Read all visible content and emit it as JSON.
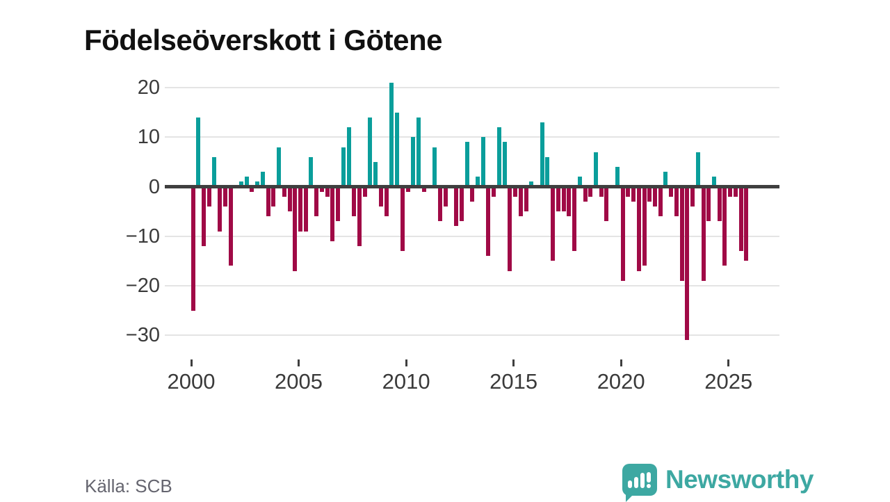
{
  "title": "Födelseöverskott i Götene",
  "source": "Källa: SCB",
  "brand": {
    "name": "Newsworthy",
    "color": "#3da8a2"
  },
  "colors": {
    "positive": "#0a9e9b",
    "negative": "#a00a46",
    "grid": "#e4e4e4",
    "zero_line": "#3f3f3f",
    "axis_text": "#3a3a3a",
    "source_text": "#65656f"
  },
  "chart_data": {
    "type": "bar",
    "title": "Födelseöverskott i Götene",
    "xlabel": "",
    "ylabel": "",
    "frequency": "quarterly",
    "grid": true,
    "legend": false,
    "ylim": [
      -33,
      23
    ],
    "y_ticks": [
      20,
      10,
      0,
      -10,
      -20,
      -30
    ],
    "x_ticks": [
      2000,
      2005,
      2010,
      2015,
      2020,
      2025
    ],
    "series": [
      {
        "year": 2000,
        "q": [
          -25,
          14,
          -12,
          -4
        ]
      },
      {
        "year": 2001,
        "q": [
          6,
          -9,
          -4,
          -16
        ]
      },
      {
        "year": 2002,
        "q": [
          0,
          1,
          2,
          -1
        ]
      },
      {
        "year": 2003,
        "q": [
          1,
          3,
          -6,
          -4
        ]
      },
      {
        "year": 2004,
        "q": [
          8,
          -2,
          -5,
          -17
        ]
      },
      {
        "year": 2005,
        "q": [
          -9,
          -9,
          6,
          -6
        ]
      },
      {
        "year": 2006,
        "q": [
          -1,
          -2,
          -11,
          -7
        ]
      },
      {
        "year": 2007,
        "q": [
          8,
          12,
          -6,
          -12
        ]
      },
      {
        "year": 2008,
        "q": [
          -2,
          14,
          5,
          -4
        ]
      },
      {
        "year": 2009,
        "q": [
          -6,
          21,
          15,
          -13
        ]
      },
      {
        "year": 2010,
        "q": [
          -1,
          10,
          14,
          -1
        ]
      },
      {
        "year": 2011,
        "q": [
          0,
          8,
          -7,
          -4
        ]
      },
      {
        "year": 2012,
        "q": [
          0,
          -8,
          -7,
          9
        ]
      },
      {
        "year": 2013,
        "q": [
          -3,
          2,
          10,
          -14
        ]
      },
      {
        "year": 2014,
        "q": [
          -2,
          12,
          9,
          -17
        ]
      },
      {
        "year": 2015,
        "q": [
          -2,
          -6,
          -5,
          1
        ]
      },
      {
        "year": 2016,
        "q": [
          0,
          13,
          6,
          -15
        ]
      },
      {
        "year": 2017,
        "q": [
          -5,
          -5,
          -6,
          -13
        ]
      },
      {
        "year": 2018,
        "q": [
          2,
          -3,
          -2,
          7
        ]
      },
      {
        "year": 2019,
        "q": [
          -2,
          -7,
          0,
          4
        ]
      },
      {
        "year": 2020,
        "q": [
          -19,
          -2,
          -3,
          -17
        ]
      },
      {
        "year": 2021,
        "q": [
          -16,
          -3,
          -4,
          -6
        ]
      },
      {
        "year": 2022,
        "q": [
          3,
          -2,
          -6,
          -19
        ]
      },
      {
        "year": 2023,
        "q": [
          -31,
          -4,
          7,
          -19
        ]
      },
      {
        "year": 2024,
        "q": [
          -7,
          2,
          -7,
          -16
        ]
      },
      {
        "year": 2025,
        "q": [
          -2,
          -2,
          -13,
          -15
        ]
      }
    ]
  }
}
